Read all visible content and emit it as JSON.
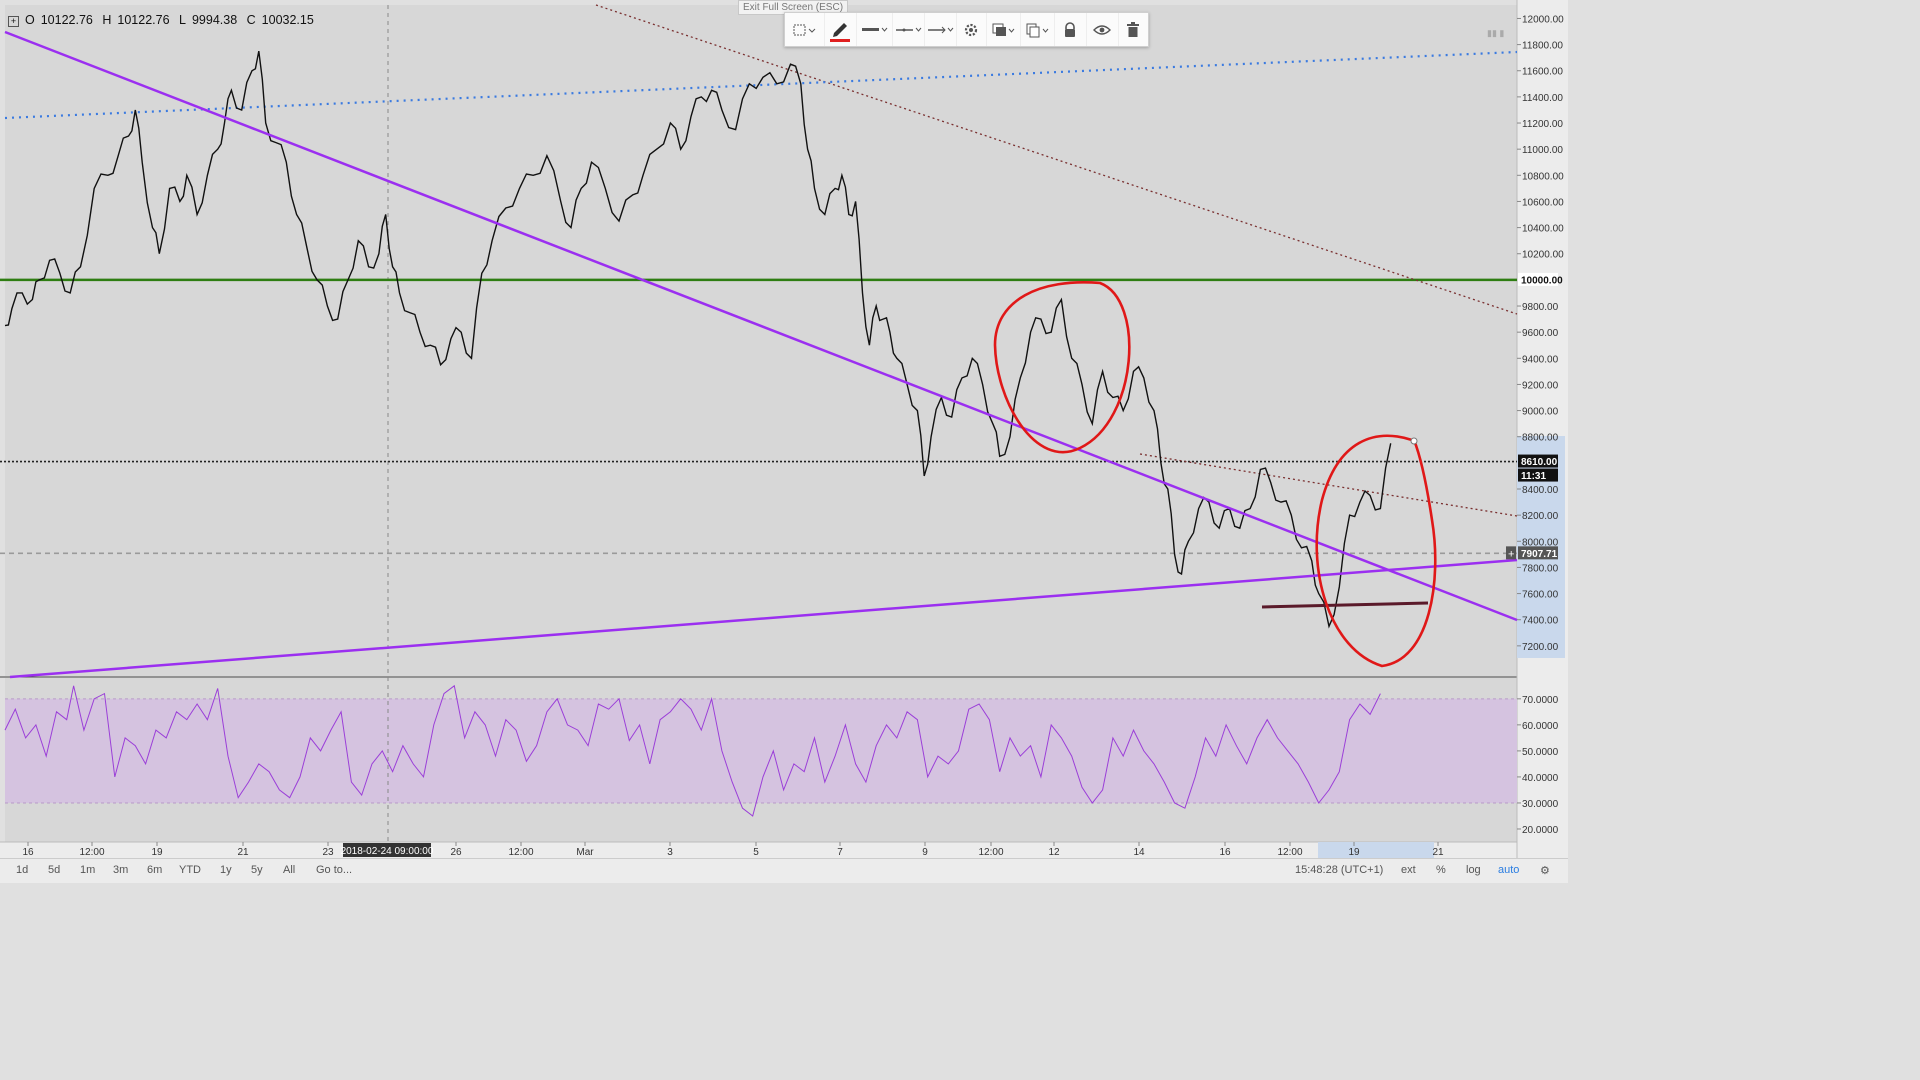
{
  "ohlc": {
    "o": "O",
    "o_val": "10122.76",
    "h": "H",
    "h_val": "10122.76",
    "l": "L",
    "l_val": "9994.38",
    "c": "C",
    "c_val": "10032.15"
  },
  "exit_fullscreen": "Exit Full Screen (ESC)",
  "toolbar": {
    "icons": [
      "select-rect-icon",
      "pencil-icon",
      "line-width-icon",
      "line-style-icon",
      "line-extend-icon",
      "gear-icon",
      "layers-icon",
      "clone-icon",
      "lock-icon",
      "eye-icon",
      "trash-icon"
    ],
    "accent": "#e02020"
  },
  "chart_data": {
    "type": "line",
    "price_axis": {
      "ticks": [
        "12000.00",
        "11800.00",
        "11600.00",
        "11400.00",
        "11200.00",
        "11000.00",
        "10800.00",
        "10600.00",
        "10400.00",
        "10200.00",
        "10000.00",
        "9800.00",
        "9600.00",
        "9400.00",
        "9200.00",
        "9000.00",
        "8800.00",
        "8610.00",
        "8400.00",
        "8200.00",
        "8000.00",
        "7907.71",
        "7800.00",
        "7600.00",
        "7400.00",
        "7200.00"
      ],
      "range": [
        7000,
        12080
      ],
      "level_labels": {
        "green": "10000.00",
        "current": "8610.00",
        "countdown": "11:31",
        "crosshair": "7907.71"
      }
    },
    "rsi_axis": {
      "ticks": [
        "70.0000",
        "60.0000",
        "50.0000",
        "40.0000",
        "30.0000",
        "20.0000"
      ],
      "range": [
        15,
        78
      ],
      "band": [
        30,
        70
      ]
    },
    "time_axis": {
      "ticks": [
        "16",
        "12:00",
        "19",
        "21",
        "23",
        "26",
        "12:00",
        "Mar",
        "3",
        "5",
        "7",
        "9",
        "12:00",
        "12",
        "14",
        "16",
        "12:00",
        "19",
        "21"
      ],
      "crosshair": "2018-02-24 09:00:00"
    },
    "price_path": [
      [
        0,
        9650
      ],
      [
        2,
        9780
      ],
      [
        5,
        9900
      ],
      [
        8,
        9850
      ],
      [
        10,
        10000
      ],
      [
        13,
        10150
      ],
      [
        16,
        10050
      ],
      [
        19,
        9900
      ],
      [
        22,
        10100
      ],
      [
        26,
        10700
      ],
      [
        30,
        10800
      ],
      [
        33,
        10950
      ],
      [
        36,
        11100
      ],
      [
        38,
        11300
      ],
      [
        40,
        10900
      ],
      [
        43,
        10400
      ],
      [
        45,
        10200
      ],
      [
        48,
        10700
      ],
      [
        51,
        10600
      ],
      [
        53,
        10800
      ],
      [
        56,
        10500
      ],
      [
        59,
        10800
      ],
      [
        62,
        11000
      ],
      [
        64,
        11200
      ],
      [
        66,
        11450
      ],
      [
        69,
        11300
      ],
      [
        72,
        11600
      ],
      [
        74,
        11750
      ],
      [
        76,
        11200
      ],
      [
        79,
        11050
      ],
      [
        82,
        10900
      ],
      [
        85,
        10500
      ],
      [
        88,
        10250
      ],
      [
        91,
        10000
      ],
      [
        94,
        9800
      ],
      [
        97,
        9700
      ],
      [
        100,
        10000
      ],
      [
        103,
        10300
      ],
      [
        106,
        10100
      ],
      [
        109,
        10200
      ],
      [
        111,
        10500
      ],
      [
        113,
        10100
      ],
      [
        115,
        9900
      ],
      [
        118,
        9750
      ],
      [
        121,
        9600
      ],
      [
        124,
        9500
      ],
      [
        127,
        9350
      ],
      [
        130,
        9550
      ],
      [
        133,
        9600
      ],
      [
        136,
        9400
      ],
      [
        139,
        10050
      ],
      [
        142,
        10300
      ],
      [
        146,
        10550
      ],
      [
        150,
        10700
      ],
      [
        154,
        10800
      ],
      [
        158,
        10950
      ],
      [
        162,
        10600
      ],
      [
        165,
        10400
      ],
      [
        168,
        10700
      ],
      [
        171,
        10900
      ],
      [
        175,
        10700
      ],
      [
        179,
        10450
      ],
      [
        183,
        10650
      ],
      [
        186,
        10800
      ],
      [
        190,
        11000
      ],
      [
        194,
        11200
      ],
      [
        197,
        11000
      ],
      [
        200,
        11250
      ],
      [
        203,
        11400
      ],
      [
        206,
        11450
      ],
      [
        209,
        11300
      ],
      [
        213,
        11150
      ],
      [
        217,
        11500
      ],
      [
        221,
        11550
      ],
      [
        225,
        11500
      ],
      [
        229,
        11650
      ],
      [
        232,
        11500
      ],
      [
        234,
        11000
      ],
      [
        236,
        10700
      ],
      [
        239,
        10500
      ],
      [
        242,
        10700
      ],
      [
        244,
        10800
      ],
      [
        246,
        10500
      ],
      [
        248,
        10600
      ],
      [
        250,
        9900
      ],
      [
        252,
        9500
      ],
      [
        254,
        9800
      ],
      [
        256,
        9700
      ],
      [
        258,
        9600
      ],
      [
        260,
        9400
      ],
      [
        263,
        9200
      ],
      [
        266,
        9000
      ],
      [
        268,
        8500
      ],
      [
        270,
        8800
      ],
      [
        273,
        9100
      ],
      [
        276,
        8950
      ],
      [
        279,
        9250
      ],
      [
        282,
        9400
      ],
      [
        285,
        9200
      ],
      [
        288,
        8900
      ],
      [
        290,
        8650
      ],
      [
        293,
        8800
      ],
      [
        296,
        9250
      ],
      [
        299,
        9600
      ],
      [
        302,
        9700
      ],
      [
        305,
        9600
      ],
      [
        308,
        9850
      ],
      [
        311,
        9400
      ],
      [
        314,
        9200
      ],
      [
        317,
        8900
      ],
      [
        320,
        9300
      ],
      [
        323,
        9100
      ],
      [
        326,
        9000
      ],
      [
        329,
        9300
      ],
      [
        332,
        9250
      ],
      [
        335,
        9000
      ],
      [
        337,
        8600
      ],
      [
        339,
        8400
      ],
      [
        341,
        7900
      ],
      [
        343,
        7750
      ],
      [
        345,
        8000
      ],
      [
        348,
        8250
      ],
      [
        351,
        8300
      ],
      [
        354,
        8100
      ],
      [
        357,
        8250
      ],
      [
        360,
        8100
      ],
      [
        363,
        8250
      ],
      [
        366,
        8550
      ],
      [
        369,
        8450
      ],
      [
        372,
        8300
      ],
      [
        375,
        8200
      ],
      [
        378,
        7950
      ],
      [
        381,
        7850
      ],
      [
        383,
        7600
      ],
      [
        386,
        7350
      ],
      [
        389,
        7650
      ],
      [
        392,
        8200
      ],
      [
        395,
        8300
      ],
      [
        398,
        8350
      ],
      [
        401,
        8250
      ],
      [
        404,
        8750
      ]
    ],
    "rsi_path": [
      [
        0,
        58
      ],
      [
        3,
        66
      ],
      [
        6,
        55
      ],
      [
        9,
        60
      ],
      [
        12,
        48
      ],
      [
        15,
        65
      ],
      [
        18,
        62
      ],
      [
        20,
        75
      ],
      [
        23,
        58
      ],
      [
        26,
        70
      ],
      [
        29,
        72
      ],
      [
        32,
        40
      ],
      [
        35,
        55
      ],
      [
        38,
        52
      ],
      [
        41,
        45
      ],
      [
        44,
        58
      ],
      [
        47,
        55
      ],
      [
        50,
        65
      ],
      [
        53,
        62
      ],
      [
        56,
        68
      ],
      [
        59,
        62
      ],
      [
        62,
        74
      ],
      [
        65,
        48
      ],
      [
        68,
        32
      ],
      [
        71,
        38
      ],
      [
        74,
        45
      ],
      [
        77,
        42
      ],
      [
        80,
        35
      ],
      [
        83,
        32
      ],
      [
        86,
        40
      ],
      [
        89,
        55
      ],
      [
        92,
        50
      ],
      [
        95,
        58
      ],
      [
        98,
        65
      ],
      [
        101,
        38
      ],
      [
        104,
        33
      ],
      [
        107,
        45
      ],
      [
        110,
        50
      ],
      [
        113,
        42
      ],
      [
        116,
        52
      ],
      [
        119,
        45
      ],
      [
        122,
        40
      ],
      [
        125,
        60
      ],
      [
        128,
        72
      ],
      [
        131,
        75
      ],
      [
        134,
        55
      ],
      [
        137,
        65
      ],
      [
        140,
        60
      ],
      [
        143,
        48
      ],
      [
        146,
        62
      ],
      [
        149,
        58
      ],
      [
        152,
        46
      ],
      [
        155,
        52
      ],
      [
        158,
        65
      ],
      [
        161,
        70
      ],
      [
        164,
        60
      ],
      [
        167,
        58
      ],
      [
        170,
        52
      ],
      [
        173,
        68
      ],
      [
        176,
        66
      ],
      [
        179,
        70
      ],
      [
        182,
        54
      ],
      [
        185,
        60
      ],
      [
        188,
        45
      ],
      [
        191,
        62
      ],
      [
        194,
        65
      ],
      [
        197,
        70
      ],
      [
        200,
        66
      ],
      [
        203,
        58
      ],
      [
        206,
        70
      ],
      [
        209,
        50
      ],
      [
        212,
        38
      ],
      [
        215,
        28
      ],
      [
        218,
        25
      ],
      [
        221,
        40
      ],
      [
        224,
        50
      ],
      [
        227,
        35
      ],
      [
        230,
        45
      ],
      [
        233,
        42
      ],
      [
        236,
        55
      ],
      [
        239,
        38
      ],
      [
        242,
        48
      ],
      [
        245,
        60
      ],
      [
        248,
        45
      ],
      [
        251,
        38
      ],
      [
        254,
        52
      ],
      [
        257,
        60
      ],
      [
        260,
        55
      ],
      [
        263,
        65
      ],
      [
        266,
        62
      ],
      [
        269,
        40
      ],
      [
        272,
        48
      ],
      [
        275,
        45
      ],
      [
        278,
        50
      ],
      [
        281,
        66
      ],
      [
        284,
        68
      ],
      [
        287,
        62
      ],
      [
        290,
        42
      ],
      [
        293,
        55
      ],
      [
        296,
        48
      ],
      [
        299,
        52
      ],
      [
        302,
        40
      ],
      [
        305,
        60
      ],
      [
        308,
        55
      ],
      [
        311,
        48
      ],
      [
        314,
        36
      ],
      [
        317,
        30
      ],
      [
        320,
        35
      ],
      [
        323,
        55
      ],
      [
        326,
        48
      ],
      [
        329,
        58
      ],
      [
        332,
        50
      ],
      [
        335,
        45
      ],
      [
        338,
        38
      ],
      [
        341,
        30
      ],
      [
        344,
        28
      ],
      [
        347,
        40
      ],
      [
        350,
        55
      ],
      [
        353,
        48
      ],
      [
        356,
        60
      ],
      [
        359,
        52
      ],
      [
        362,
        45
      ],
      [
        365,
        55
      ],
      [
        368,
        62
      ],
      [
        371,
        55
      ],
      [
        374,
        50
      ],
      [
        377,
        45
      ],
      [
        380,
        38
      ],
      [
        383,
        30
      ],
      [
        386,
        35
      ],
      [
        389,
        42
      ],
      [
        392,
        62
      ],
      [
        395,
        68
      ],
      [
        398,
        64
      ],
      [
        401,
        72
      ]
    ],
    "lines": [
      {
        "name": "green-resistance",
        "color": "#2e7d12",
        "from": [
          0,
          10000
        ],
        "to": [
          1,
          10000
        ],
        "style": "solid"
      },
      {
        "name": "current-price-line",
        "color": "#222222",
        "from": [
          0,
          8610
        ],
        "to": [
          1,
          8610
        ],
        "style": "dotted"
      },
      {
        "name": "crosshair-price-line",
        "color": "#9a9a9a",
        "from": [
          0,
          7907.71
        ],
        "to": [
          1,
          7907.71
        ],
        "style": "dashed"
      }
    ],
    "colors": {
      "price": "#111111",
      "rsi": "#9b3fd8",
      "rsi_band": "#d5c3e0",
      "purple_trend": "#9b2ff0",
      "blue_dotted": "#3a7ae0",
      "brown_dotted": "#7a3030",
      "circle": "#e01818",
      "support": "#5a1a2a",
      "green": "#2e7d12"
    }
  },
  "bottom_bar": {
    "ranges": [
      "1d",
      "5d",
      "1m",
      "3m",
      "6m",
      "YTD",
      "1y",
      "5y",
      "All"
    ],
    "goto": "Go to...",
    "clock": "15:48:28 (UTC+1)",
    "ext": "ext",
    "percent": "%",
    "log": "log",
    "auto": "auto"
  }
}
